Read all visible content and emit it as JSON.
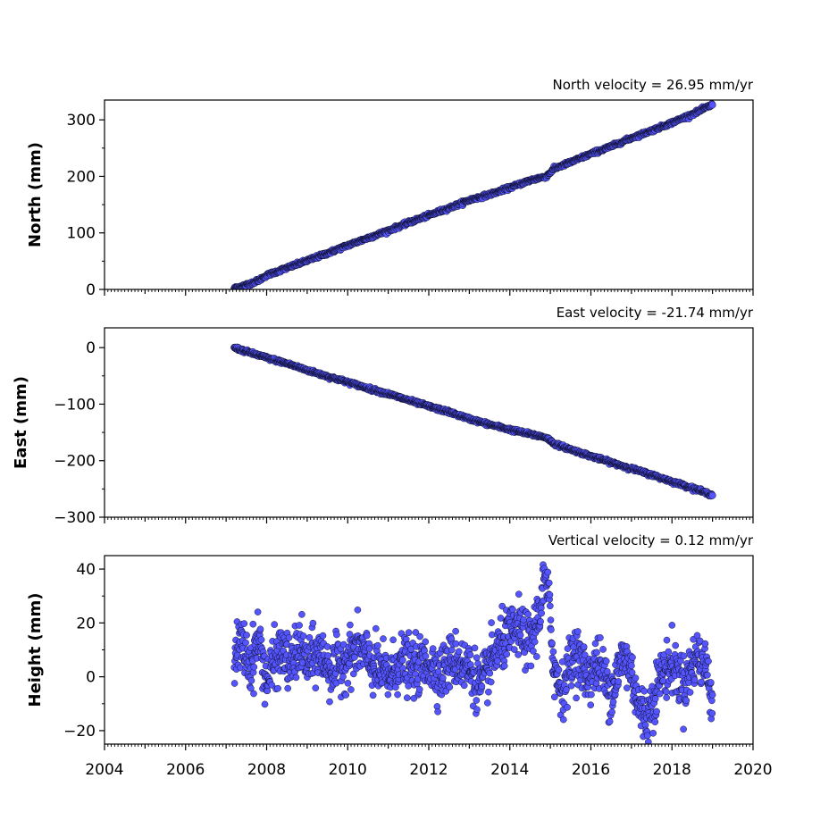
{
  "chart_data": [
    {
      "type": "scatter",
      "title": "North velocity = 26.95 mm/yr",
      "xlabel": "",
      "ylabel": "North (mm)",
      "xlim": [
        2004,
        2020
      ],
      "ylim": [
        0,
        335
      ],
      "yticks": [
        0,
        100,
        200,
        300
      ],
      "ytick_labels": [
        "0",
        "100",
        "200",
        "300"
      ],
      "x_tick_labels_visible": false,
      "grid": false,
      "series": [
        {
          "marker_color": "#5555ff",
          "edge_color": "#000000",
          "x": [
            2007.2,
            2007.5,
            2007.8,
            2008.0,
            2008.5,
            2009.0,
            2009.5,
            2010.0,
            2010.5,
            2011.0,
            2011.5,
            2012.0,
            2012.5,
            2013.0,
            2013.5,
            2014.0,
            2014.5,
            2014.9,
            2015.1,
            2015.5,
            2016.0,
            2016.5,
            2017.0,
            2017.5,
            2018.0,
            2018.5,
            2019.0
          ],
          "y": [
            2,
            8,
            16,
            25,
            38,
            51,
            64,
            78,
            91,
            104,
            118,
            131,
            144,
            158,
            168,
            180,
            193,
            200,
            214,
            225,
            240,
            253,
            268,
            281,
            295,
            310,
            327
          ]
        }
      ]
    },
    {
      "type": "scatter",
      "title": "East velocity = -21.74 mm/yr",
      "xlabel": "",
      "ylabel": "East (mm)",
      "xlim": [
        2004,
        2020
      ],
      "ylim": [
        -300,
        35
      ],
      "yticks": [
        0,
        -100,
        -200,
        -300
      ],
      "ytick_labels": [
        "0",
        "−100",
        "−200",
        "−300"
      ],
      "x_tick_labels_visible": false,
      "grid": false,
      "series": [
        {
          "marker_color": "#5555ff",
          "edge_color": "#000000",
          "x": [
            2007.2,
            2007.5,
            2008.0,
            2008.5,
            2009.0,
            2009.5,
            2010.0,
            2010.5,
            2011.0,
            2011.5,
            2012.0,
            2012.5,
            2013.0,
            2013.5,
            2014.0,
            2014.5,
            2014.9,
            2015.1,
            2015.5,
            2016.0,
            2016.5,
            2017.0,
            2017.5,
            2018.0,
            2018.5,
            2019.0
          ],
          "y": [
            0,
            -7,
            -18,
            -28,
            -40,
            -51,
            -61,
            -72,
            -82,
            -93,
            -104,
            -114,
            -126,
            -136,
            -145,
            -153,
            -159,
            -170,
            -180,
            -192,
            -203,
            -214,
            -225,
            -237,
            -248,
            -261
          ]
        }
      ]
    },
    {
      "type": "scatter",
      "title": "Vertical velocity = 0.12 mm/yr",
      "xlabel": "",
      "ylabel": "Height (mm)",
      "xlim": [
        2004,
        2020
      ],
      "ylim": [
        -25,
        45
      ],
      "yticks": [
        40,
        20,
        0,
        -20
      ],
      "ytick_labels": [
        "40",
        "20",
        "0",
        "−20"
      ],
      "xticks": [
        2004,
        2006,
        2008,
        2010,
        2012,
        2014,
        2016,
        2018,
        2020
      ],
      "xtick_labels": [
        "2004",
        "2006",
        "2008",
        "2010",
        "2012",
        "2014",
        "2016",
        "2018",
        "2020"
      ],
      "grid": false,
      "series": [
        {
          "marker_color": "#5555ff",
          "edge_color": "#000000",
          "x": [
            2007.2,
            2007.4,
            2007.6,
            2007.8,
            2008.0,
            2008.2,
            2008.4,
            2008.6,
            2008.8,
            2009.0,
            2009.3,
            2009.6,
            2010.0,
            2010.3,
            2010.6,
            2011.0,
            2011.3,
            2011.6,
            2012.0,
            2012.3,
            2012.6,
            2013.0,
            2013.3,
            2013.6,
            2013.9,
            2014.2,
            2014.5,
            2014.75,
            2014.85,
            2014.95,
            2015.1,
            2015.3,
            2015.6,
            2015.9,
            2016.2,
            2016.5,
            2016.8,
            2017.0,
            2017.2,
            2017.4,
            2017.7,
            2018.0,
            2018.3,
            2018.6,
            2018.9,
            2019.0
          ],
          "y": [
            8,
            12,
            4,
            15,
            -2,
            6,
            10,
            3,
            12,
            5,
            9,
            2,
            7,
            11,
            4,
            0,
            6,
            3,
            5,
            1,
            7,
            3,
            -4,
            8,
            14,
            18,
            12,
            25,
            38,
            30,
            2,
            -5,
            10,
            0,
            5,
            -6,
            8,
            2,
            -12,
            -15,
            0,
            5,
            -3,
            8,
            2,
            -10
          ]
        }
      ]
    }
  ]
}
